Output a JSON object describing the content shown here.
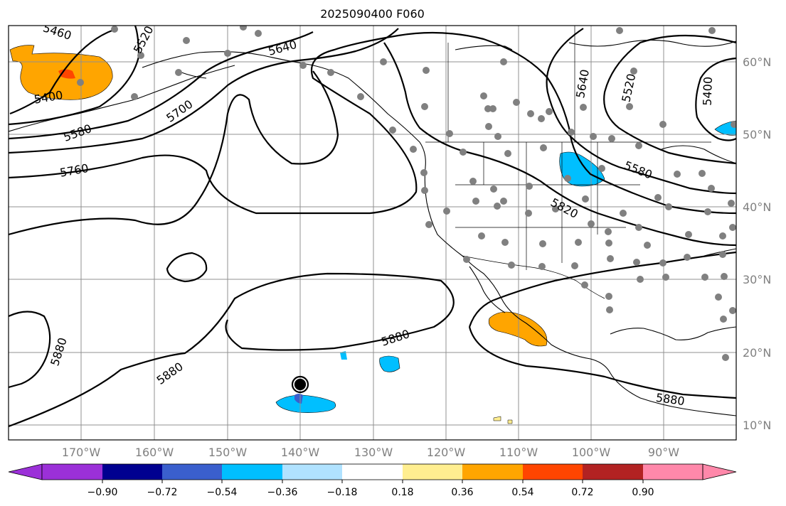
{
  "title": "2025090400 F060",
  "lon_labels": [
    "170°W",
    "160°W",
    "150°W",
    "140°W",
    "130°W",
    "120°W",
    "110°W",
    "100°W",
    "90°W"
  ],
  "lat_labels": [
    "60°N",
    "50°N",
    "40°N",
    "30°N",
    "20°N",
    "10°N"
  ],
  "contour_labels": [
    "5460",
    "5520",
    "5400",
    "5580",
    "5700",
    "5640",
    "5760",
    "5880",
    "5820",
    "5880",
    "5880",
    "5880",
    "5640",
    "5520",
    "5400",
    "5580"
  ],
  "colorbar": {
    "tick_labels": [
      "−0.90",
      "−0.72",
      "−0.54",
      "−0.36",
      "−0.18",
      "0.18",
      "0.36",
      "0.54",
      "0.72",
      "0.90"
    ],
    "colors": [
      "#9b30d8",
      "#000090",
      "#3a5fcd",
      "#00bfff",
      "#b0e2ff",
      "#ffffff",
      "#ffee90",
      "#ffa500",
      "#ff4500",
      "#b22222",
      "#ff88aa"
    ]
  },
  "colors": {
    "grid": "#909090",
    "contour": "#000000",
    "station": "#808080",
    "positive_anomaly": "#ffa500",
    "negative_anomaly": "#00bfff"
  }
}
